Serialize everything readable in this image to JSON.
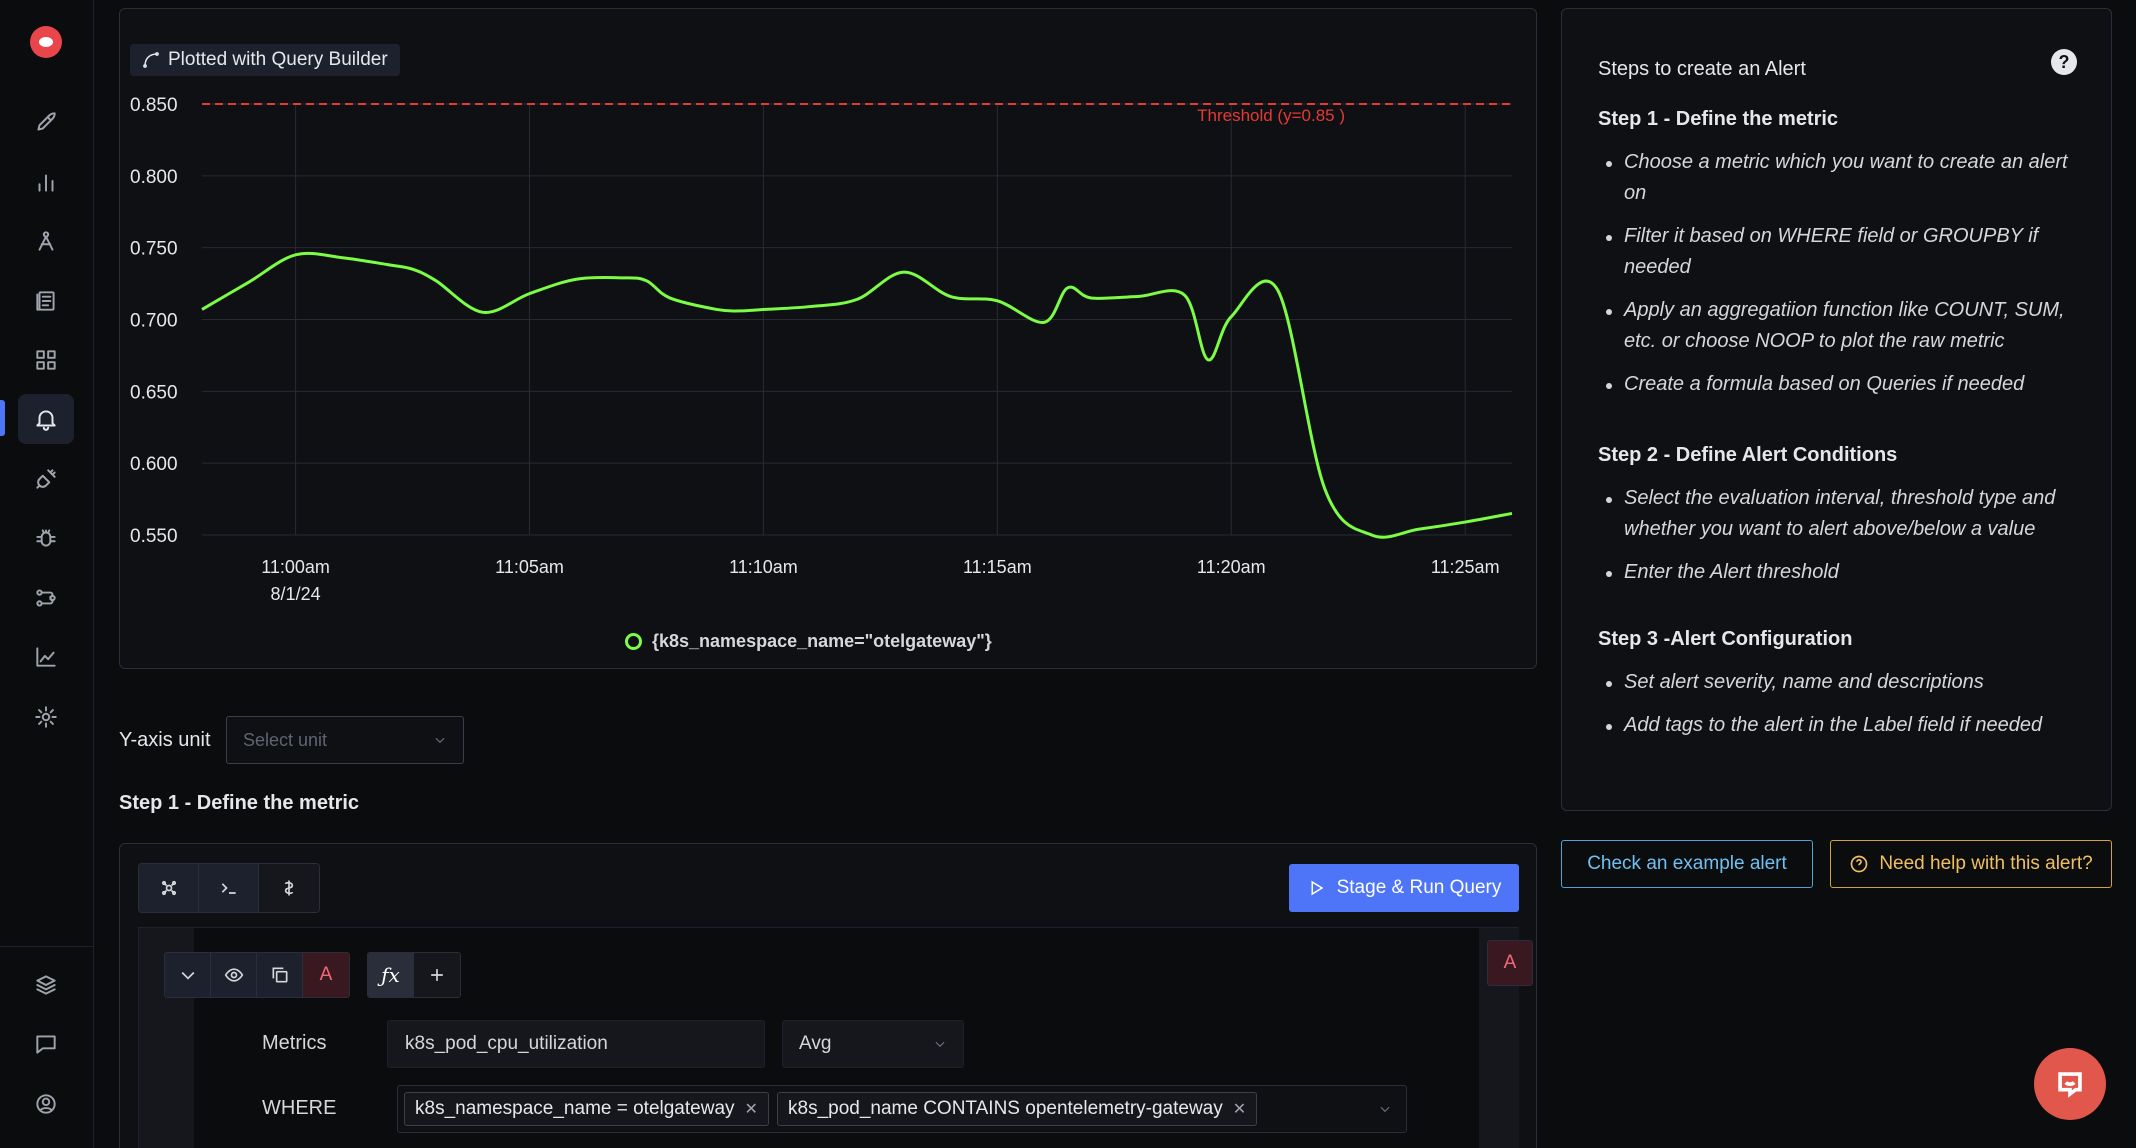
{
  "sidebar": {
    "items": [
      {
        "icon": "rocket-icon"
      },
      {
        "icon": "bar-chart-icon"
      },
      {
        "icon": "traces-icon"
      },
      {
        "icon": "logs-icon"
      },
      {
        "icon": "dashboard-grid-icon"
      },
      {
        "icon": "alerts-bell-icon",
        "active": true
      },
      {
        "icon": "integrations-plug-icon"
      },
      {
        "icon": "bug-icon"
      },
      {
        "icon": "pipelines-icon"
      },
      {
        "icon": "metrics-chart-icon"
      },
      {
        "icon": "settings-gear-icon"
      }
    ],
    "bottom_items": [
      {
        "icon": "layers-icon"
      },
      {
        "icon": "chat-icon"
      },
      {
        "icon": "user-circle-icon"
      }
    ]
  },
  "chart_panel": {
    "badge_label": "Plotted with  Query Builder",
    "legend_label": "{k8s_namespace_name=\"otelgateway\"}"
  },
  "chart_data": {
    "type": "line",
    "title": "",
    "xlabel": "",
    "ylabel": "",
    "x_tick_labels": [
      "11:00am",
      "11:05am",
      "11:10am",
      "11:15am",
      "11:20am",
      "11:25am"
    ],
    "x_first_tick_date": "8/1/24",
    "y_tick_labels": [
      "0.850",
      "0.800",
      "0.750",
      "0.700",
      "0.650",
      "0.600",
      "0.550"
    ],
    "ylim": [
      0.55,
      0.85
    ],
    "xlim_minutes": [
      -2.0,
      26.0
    ],
    "grid": true,
    "threshold": {
      "value": 0.85,
      "label": "Threshold (y=0.85 )",
      "color": "#e53935"
    },
    "series": [
      {
        "name": "{k8s_namespace_name=\"otelgateway\"}",
        "color": "#7cfc45",
        "x": [
          -2.0,
          -1.0,
          0.0,
          1.0,
          2.0,
          2.5,
          3.0,
          4.0,
          5.0,
          6.0,
          7.0,
          7.5,
          8.0,
          9.0,
          9.5,
          10.0,
          11.0,
          12.0,
          13.0,
          14.0,
          15.0,
          16.0,
          16.5,
          17.0,
          18.0,
          19.0,
          19.5,
          20.0,
          21.0,
          22.0,
          23.0,
          24.0,
          25.0,
          26.0
        ],
        "y": [
          0.707,
          0.726,
          0.745,
          0.743,
          0.738,
          0.735,
          0.727,
          0.705,
          0.718,
          0.728,
          0.729,
          0.727,
          0.715,
          0.707,
          0.706,
          0.707,
          0.709,
          0.714,
          0.733,
          0.716,
          0.713,
          0.698,
          0.722,
          0.715,
          0.716,
          0.717,
          0.672,
          0.702,
          0.72,
          0.582,
          0.55,
          0.554,
          0.559,
          0.565
        ]
      }
    ]
  },
  "yaxis_unit": {
    "label": "Y-axis unit",
    "placeholder": "Select unit"
  },
  "step1_heading": "Step 1 - Define the metric",
  "query_builder": {
    "tabs": [
      {
        "icon": "query-builder-icon"
      },
      {
        "icon": "terminal-icon"
      },
      {
        "icon": "promql-icon"
      }
    ],
    "stage_button": "Stage & Run Query",
    "query_name": "A",
    "right_badge": "A",
    "fx_label": "ƒx",
    "metrics_label": "Metrics",
    "metric_value": "k8s_pod_cpu_utilization",
    "aggregation": "Avg",
    "where_label": "WHERE",
    "filters": [
      {
        "text": "k8s_namespace_name = otelgateway"
      },
      {
        "text": "k8s_pod_name CONTAINS opentelemetry-gateway"
      }
    ]
  },
  "help_panel": {
    "title": "Steps to create an Alert",
    "steps": [
      {
        "heading": "Step 1 - Define the metric",
        "bullets": [
          "Choose a metric which you want to create an alert on",
          "Filter it based on WHERE field or GROUPBY if needed",
          "Apply an aggregatiion function like COUNT, SUM, etc. or choose NOOP to plot the raw metric",
          "Create a formula based on Queries if needed"
        ]
      },
      {
        "heading": "Step 2 - Define Alert Conditions",
        "bullets": [
          "Select the evaluation interval, threshold type and whether you want to alert above/below a value",
          "Enter the Alert threshold"
        ]
      },
      {
        "heading": "Step 3 -Alert Configuration",
        "bullets": [
          "Set alert severity, name and descriptions",
          "Add tags to the alert in the Label field if needed"
        ]
      }
    ]
  },
  "buttons": {
    "example_alert": "Check an example alert",
    "need_help": "Need help with this alert?"
  }
}
